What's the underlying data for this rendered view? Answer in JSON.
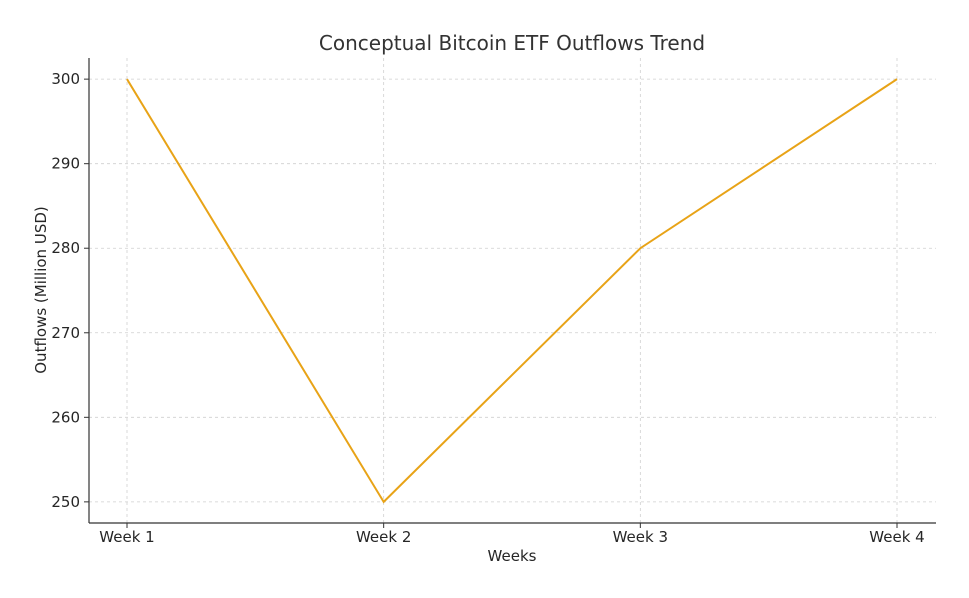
{
  "chart_data": {
    "type": "line",
    "title": "Conceptual Bitcoin ETF Outflows Trend",
    "xlabel": "Weeks",
    "ylabel": "Outflows (Million USD)",
    "categories": [
      "Week 1",
      "Week 2",
      "Week 3",
      "Week 4"
    ],
    "series": [
      {
        "name": "Outflows",
        "values": [
          300,
          250,
          280,
          300
        ],
        "color": "#E8A317"
      }
    ],
    "yticks": [
      250,
      260,
      270,
      280,
      290,
      300
    ],
    "ylim": [
      247.5,
      302.5
    ],
    "grid": true
  }
}
